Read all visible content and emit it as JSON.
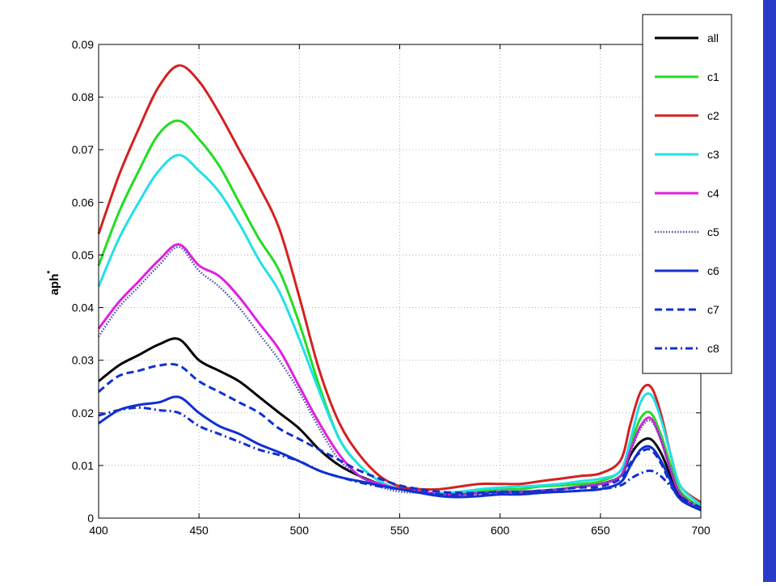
{
  "colors": {
    "side_bar": "#2a3ac8",
    "grid": "#b0b0b0"
  },
  "chart_data": {
    "type": "line",
    "title": "",
    "xlabel": "",
    "ylabel": "aph",
    "ylabel_superscript": "*",
    "xlim": [
      400,
      700
    ],
    "ylim": [
      0,
      0.09
    ],
    "xticks": [
      400,
      450,
      500,
      550,
      600,
      650,
      700
    ],
    "yticks": [
      0,
      0.01,
      0.02,
      0.03,
      0.04,
      0.05,
      0.06,
      0.07,
      0.08,
      0.09
    ],
    "grid": true,
    "legend": "top-right",
    "x": [
      400,
      410,
      420,
      430,
      440,
      450,
      460,
      470,
      480,
      490,
      500,
      510,
      520,
      530,
      540,
      550,
      560,
      570,
      580,
      590,
      600,
      610,
      620,
      630,
      640,
      650,
      660,
      665,
      670,
      675,
      680,
      685,
      690,
      700
    ],
    "series": [
      {
        "name": "all",
        "color": "#000000",
        "dash": "solid",
        "values": [
          0.026,
          0.029,
          0.031,
          0.033,
          0.034,
          0.03,
          0.028,
          0.026,
          0.023,
          0.02,
          0.017,
          0.013,
          0.01,
          0.008,
          0.0065,
          0.0055,
          0.005,
          0.0045,
          0.0045,
          0.0048,
          0.005,
          0.005,
          0.0052,
          0.0055,
          0.006,
          0.0065,
          0.008,
          0.012,
          0.0145,
          0.015,
          0.0125,
          0.008,
          0.004,
          0.002
        ]
      },
      {
        "name": "c1",
        "color": "#22dd22",
        "dash": "solid",
        "values": [
          0.048,
          0.058,
          0.066,
          0.073,
          0.0755,
          0.072,
          0.067,
          0.06,
          0.053,
          0.047,
          0.037,
          0.025,
          0.015,
          0.01,
          0.007,
          0.0055,
          0.005,
          0.0045,
          0.0048,
          0.0052,
          0.0055,
          0.0055,
          0.006,
          0.0062,
          0.0065,
          0.007,
          0.009,
          0.014,
          0.019,
          0.02,
          0.016,
          0.01,
          0.005,
          0.002
        ]
      },
      {
        "name": "c2",
        "color": "#d42020",
        "dash": "solid",
        "values": [
          0.054,
          0.065,
          0.074,
          0.082,
          0.086,
          0.083,
          0.077,
          0.07,
          0.063,
          0.055,
          0.042,
          0.028,
          0.018,
          0.012,
          0.008,
          0.006,
          0.0055,
          0.0055,
          0.006,
          0.0065,
          0.0065,
          0.0065,
          0.007,
          0.0075,
          0.008,
          0.0085,
          0.011,
          0.018,
          0.024,
          0.025,
          0.02,
          0.012,
          0.006,
          0.003
        ]
      },
      {
        "name": "c3",
        "color": "#22e0e8",
        "dash": "solid",
        "values": [
          0.044,
          0.053,
          0.06,
          0.066,
          0.069,
          0.066,
          0.062,
          0.056,
          0.049,
          0.043,
          0.034,
          0.024,
          0.015,
          0.01,
          0.007,
          0.0055,
          0.005,
          0.0048,
          0.005,
          0.0055,
          0.0058,
          0.006,
          0.0062,
          0.0065,
          0.007,
          0.0075,
          0.009,
          0.015,
          0.022,
          0.0235,
          0.019,
          0.012,
          0.006,
          0.0025
        ]
      },
      {
        "name": "c4",
        "color": "#e020e0",
        "dash": "solid",
        "values": [
          0.036,
          0.041,
          0.045,
          0.049,
          0.052,
          0.048,
          0.046,
          0.042,
          0.037,
          0.032,
          0.025,
          0.018,
          0.012,
          0.008,
          0.0065,
          0.0055,
          0.005,
          0.0045,
          0.0045,
          0.0048,
          0.005,
          0.005,
          0.0052,
          0.0055,
          0.006,
          0.0065,
          0.008,
          0.013,
          0.0175,
          0.019,
          0.015,
          0.009,
          0.0045,
          0.0015
        ]
      },
      {
        "name": "c5",
        "color": "#5050a8",
        "dash": "dotted",
        "values": [
          0.0345,
          0.04,
          0.044,
          0.048,
          0.0515,
          0.047,
          0.044,
          0.04,
          0.035,
          0.03,
          0.024,
          0.017,
          0.011,
          0.008,
          0.006,
          0.005,
          0.0048,
          0.0045,
          0.0045,
          0.0048,
          0.005,
          0.005,
          0.0052,
          0.0055,
          0.006,
          0.0065,
          0.008,
          0.0125,
          0.017,
          0.0185,
          0.015,
          0.009,
          0.0045,
          0.0015
        ]
      },
      {
        "name": "c6",
        "color": "#1030d0",
        "dash": "solid",
        "values": [
          0.018,
          0.0205,
          0.0215,
          0.022,
          0.023,
          0.02,
          0.0175,
          0.016,
          0.014,
          0.0125,
          0.0108,
          0.009,
          0.0078,
          0.007,
          0.0062,
          0.0055,
          0.0048,
          0.0042,
          0.004,
          0.0042,
          0.0045,
          0.0045,
          0.0048,
          0.005,
          0.0052,
          0.0055,
          0.0068,
          0.01,
          0.013,
          0.0135,
          0.011,
          0.007,
          0.0035,
          0.0015
        ]
      },
      {
        "name": "c7",
        "color": "#1030d0",
        "dash": "dashed",
        "values": [
          0.024,
          0.027,
          0.028,
          0.029,
          0.029,
          0.026,
          0.024,
          0.022,
          0.02,
          0.017,
          0.015,
          0.013,
          0.011,
          0.009,
          0.0075,
          0.0062,
          0.0055,
          0.005,
          0.0048,
          0.0048,
          0.005,
          0.005,
          0.0052,
          0.0055,
          0.0058,
          0.006,
          0.0075,
          0.0105,
          0.0125,
          0.013,
          0.0105,
          0.0065,
          0.0035,
          0.0015
        ]
      },
      {
        "name": "c8",
        "color": "#1030d0",
        "dash": "dashdot",
        "values": [
          0.0195,
          0.0205,
          0.021,
          0.0205,
          0.02,
          0.0175,
          0.016,
          0.0145,
          0.013,
          0.012,
          0.0108,
          0.009,
          0.0078,
          0.0068,
          0.006,
          0.0055,
          0.005,
          0.0045,
          0.0045,
          0.0045,
          0.0048,
          0.0048,
          0.005,
          0.005,
          0.0052,
          0.0055,
          0.0062,
          0.0075,
          0.0085,
          0.009,
          0.008,
          0.006,
          0.004,
          0.002
        ]
      }
    ]
  }
}
